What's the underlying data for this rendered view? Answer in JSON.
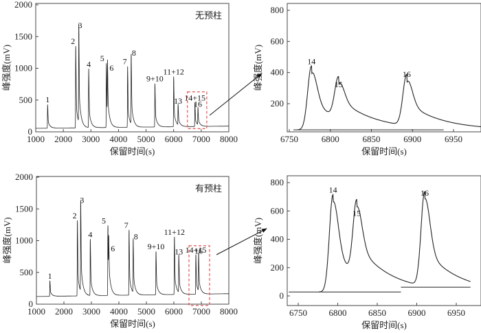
{
  "chart_data": [
    {
      "id": "overview-no-precolumn",
      "type": "line",
      "title": "",
      "annotation": "无预柱",
      "xlabel": "保留时间(s)",
      "ylabel": "峰强度(mV)",
      "xlim": [
        1000,
        8000
      ],
      "ylim": [
        0,
        2000
      ],
      "xticks": [
        1000,
        2000,
        3000,
        4000,
        5000,
        6000,
        7000,
        8000
      ],
      "yticks": [
        0,
        500,
        1000,
        1500,
        2000
      ],
      "baseline": [
        [
          1000,
          55
        ],
        [
          8000,
          90
        ]
      ],
      "peaks": [
        {
          "label": "1",
          "x": 1430,
          "y": 430
        },
        {
          "label": "2",
          "x": 2450,
          "y": 1350
        },
        {
          "label": "3",
          "x": 2560,
          "y": 1600
        },
        {
          "label": "4",
          "x": 2920,
          "y": 990
        },
        {
          "label": "5",
          "x": 3560,
          "y": 1080
        },
        {
          "label": "6",
          "x": 3600,
          "y": 930
        },
        {
          "label": "7",
          "x": 4330,
          "y": 1030
        },
        {
          "label": "8",
          "x": 4460,
          "y": 1170
        },
        {
          "label": "9+10",
          "x": 5320,
          "y": 760
        },
        {
          "label": "11+12",
          "x": 6000,
          "y": 870
        },
        {
          "label": "13",
          "x": 6160,
          "y": 410
        },
        {
          "label": "14+15",
          "x": 6770,
          "y": 460
        },
        {
          "label": "16",
          "x": 6880,
          "y": 360
        }
      ],
      "highlight_box": {
        "x": [
          6500,
          7200
        ],
        "y": [
          50,
          630
        ]
      },
      "highlight_color": "#e05050"
    },
    {
      "id": "zoom-no-precolumn",
      "type": "line",
      "xlabel": "保留时间(s)",
      "ylabel": "峰强度(mV)",
      "xlim": [
        6745,
        6985
      ],
      "ylim": [
        10,
        830
      ],
      "xticks": [
        6750,
        6800,
        6850,
        6900,
        6950
      ],
      "yticks": [
        200,
        400,
        600,
        800
      ],
      "baseline_segment": {
        "x": [
          6755,
          6938
        ],
        "y": 32
      },
      "peaks": [
        {
          "label": "14",
          "x": 6777,
          "y": 428
        },
        {
          "label": "15",
          "x": 6810,
          "y": 280
        },
        {
          "label": "16",
          "x": 6893,
          "y": 345
        }
      ],
      "valleys": [
        {
          "x": 6794,
          "y": 105
        },
        {
          "x": 6874,
          "y": 68
        }
      ],
      "end_value": {
        "x": 6985,
        "y": 70
      }
    },
    {
      "id": "overview-with-precolumn",
      "type": "line",
      "annotation": "有预柱",
      "xlabel": "保留时间(s)",
      "ylabel": "峰强度(mV)",
      "xlim": [
        1000,
        8000
      ],
      "ylim": [
        0,
        2000
      ],
      "xticks": [
        1000,
        2000,
        3000,
        4000,
        5000,
        6000,
        7000,
        8000
      ],
      "yticks": [
        0,
        500,
        1000,
        1500,
        2000
      ],
      "baseline": [
        [
          1000,
          120
        ],
        [
          8000,
          165
        ]
      ],
      "peaks": [
        {
          "label": "1",
          "x": 1490,
          "y": 370
        },
        {
          "label": "2",
          "x": 2490,
          "y": 1320
        },
        {
          "label": "3",
          "x": 2610,
          "y": 1560
        },
        {
          "label": "4",
          "x": 2960,
          "y": 1020
        },
        {
          "label": "5",
          "x": 3600,
          "y": 1240
        },
        {
          "label": "6",
          "x": 3630,
          "y": 800
        },
        {
          "label": "7",
          "x": 4370,
          "y": 1170
        },
        {
          "label": "8",
          "x": 4520,
          "y": 990
        },
        {
          "label": "9+10",
          "x": 5350,
          "y": 830
        },
        {
          "label": "11+12",
          "x": 6020,
          "y": 1060
        },
        {
          "label": "13",
          "x": 6180,
          "y": 750
        },
        {
          "label": "14+15",
          "x": 6800,
          "y": 780
        },
        {
          "label": "16",
          "x": 6900,
          "y": 760
        }
      ],
      "highlight_box": {
        "x": [
          6550,
          7300
        ],
        "y": [
          -20,
          920
        ]
      },
      "highlight_color": "#e05050"
    },
    {
      "id": "zoom-with-precolumn",
      "type": "line",
      "xlabel": "保留时间(s)",
      "ylabel": "峰强度(mV)",
      "xlim": [
        6738,
        6968
      ],
      "ylim": [
        -60,
        850
      ],
      "xticks": [
        6750,
        6800,
        6850,
        6900,
        6950
      ],
      "yticks": [
        0,
        200,
        400,
        600,
        800
      ],
      "baseline_segments": [
        {
          "x": [
            6738,
            6880
          ],
          "y": 28
        },
        {
          "x": [
            6880,
            6968
          ],
          "y": 62
        }
      ],
      "peaks": [
        {
          "label": "14",
          "x": 6794,
          "y": 700
        },
        {
          "label": "15",
          "x": 6824,
          "y": 535
        },
        {
          "label": "16",
          "x": 6910,
          "y": 680
        }
      ],
      "valleys": [
        {
          "x": 6809,
          "y": 80
        },
        {
          "x": 6888,
          "y": 62
        }
      ],
      "end_value": {
        "x": 6968,
        "y": 65
      }
    }
  ]
}
